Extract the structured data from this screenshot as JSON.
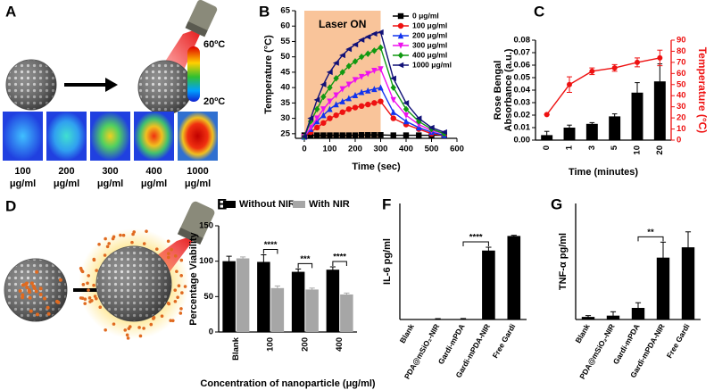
{
  "panels": [
    "A",
    "B",
    "C",
    "D",
    "E",
    "F",
    "G"
  ],
  "panel_a": {
    "scale_max": "60ºC",
    "scale_min": "20ºC",
    "labels": [
      [
        "100",
        "μg/ml"
      ],
      [
        "200",
        "μg/ml"
      ],
      [
        "300",
        "μg/ml"
      ],
      [
        "400",
        "μg/ml"
      ],
      [
        "1000",
        "μg/ml"
      ]
    ]
  },
  "chart_data": [
    {
      "type": "line",
      "annotation": "Laser ON",
      "shade_x": [
        0,
        300
      ],
      "xlabel": "Time (sec)",
      "ylabel": "Temperature (°C)",
      "xlim": [
        -35,
        600
      ],
      "xticks": [
        0,
        100,
        200,
        300,
        400,
        500,
        600
      ],
      "ylim": [
        23.5,
        65
      ],
      "yticks": [
        25,
        30,
        35,
        40,
        45,
        50,
        55,
        60,
        65
      ],
      "legend": "upper right",
      "x": [
        0,
        25,
        50,
        75,
        100,
        125,
        150,
        175,
        200,
        225,
        250,
        275,
        300,
        350,
        400,
        450,
        500,
        550
      ],
      "series": [
        {
          "name": "0 μg/ml",
          "color": "#000000",
          "marker": "square",
          "values": [
            24.5,
            24.5,
            24.5,
            24.5,
            24.5,
            24.5,
            24.5,
            24.5,
            24.5,
            24.6,
            24.6,
            24.6,
            24.6,
            24.5,
            24.5,
            24.5,
            24.5,
            24.5
          ]
        },
        {
          "name": "100 μg/ml",
          "color": "#ee1111",
          "marker": "circle",
          "values": [
            24,
            25.5,
            27,
            28.5,
            30,
            31,
            32,
            33,
            33.5,
            34,
            34.5,
            35,
            35.5,
            30,
            28,
            26.5,
            25,
            24.5
          ]
        },
        {
          "name": "200 μg/ml",
          "color": "#1133ee",
          "marker": "triangle-up",
          "values": [
            24,
            26.5,
            29,
            31,
            33,
            34.5,
            35.5,
            36.5,
            37.5,
            38.5,
            39,
            39.5,
            40,
            32,
            29,
            27,
            25.5,
            24.5
          ]
        },
        {
          "name": "300 μg/ml",
          "color": "#ee11ee",
          "marker": "triangle-down",
          "values": [
            24,
            27,
            30,
            33,
            35.5,
            37.5,
            39.5,
            41,
            42.5,
            43.5,
            44.5,
            45.5,
            46,
            36,
            31,
            28,
            26,
            25
          ]
        },
        {
          "name": "400 μg/ml",
          "color": "#119911",
          "marker": "diamond",
          "values": [
            24,
            29,
            33,
            37,
            40,
            43,
            45,
            47,
            48.5,
            50,
            51,
            52,
            53,
            40,
            33,
            29,
            26.5,
            25
          ]
        },
        {
          "name": "1000 μg/ml",
          "color": "#111177",
          "marker": "triangle-left",
          "values": [
            24,
            30,
            36,
            41,
            45,
            48,
            50.5,
            52.5,
            54,
            55.5,
            56.5,
            57.5,
            58,
            43,
            35,
            30,
            27,
            25.5
          ]
        }
      ]
    },
    {
      "type": "bar",
      "xlabel": "Time (minutes)",
      "ylabel": [
        "Rose  Bengal",
        "Absorbance (a.u.)"
      ],
      "y2label": "Temperature (°C)",
      "categories": [
        "0",
        "1",
        "3",
        "5",
        "10",
        "20"
      ],
      "ylim": [
        0,
        0.08
      ],
      "yticks": [
        {
          "value": 0,
          "label": "0.00"
        },
        {
          "value": 0.01,
          "label": "0.01"
        },
        {
          "value": 0.02,
          "label": "0.02"
        },
        {
          "value": 0.03,
          "label": "0.03"
        },
        {
          "value": 0.04,
          "label": "0.04"
        },
        {
          "value": 0.05,
          "label": "0.05"
        },
        {
          "value": 0.06,
          "label": "0.06"
        },
        {
          "value": 0.07,
          "label": "0.07"
        },
        {
          "value": 0.08,
          "label": "0.08"
        }
      ],
      "y2lim": [
        0,
        90
      ],
      "y2ticks": [
        0,
        10,
        20,
        30,
        40,
        50,
        60,
        70,
        80,
        90
      ],
      "series": [
        {
          "color": "#000000",
          "values": [
            0.004,
            0.01,
            0.013,
            0.019,
            0.038,
            0.047
          ],
          "errors": [
            0.003,
            0.002,
            0.001,
            0.002,
            0.008,
            0.014
          ]
        },
        {
          "color": "#ee1111",
          "kind": "line",
          "axis": "y2",
          "values": [
            23,
            50,
            62,
            65,
            70,
            74
          ],
          "errors": [
            0,
            7,
            3,
            3,
            4,
            7
          ]
        }
      ]
    },
    {
      "type": "bar",
      "xlabel": "Concentration of nanoparticle  (μg/ml)",
      "ylabel": "Percentage  Viability",
      "categories": [
        "Blank",
        "100",
        "200",
        "400"
      ],
      "ylim": [
        0,
        150
      ],
      "yticks": [
        0,
        50,
        100,
        150
      ],
      "series": [
        {
          "name": "Without NIR",
          "color": "#000000",
          "values": [
            100,
            99,
            85,
            88
          ],
          "errors": [
            7,
            10,
            4,
            4
          ]
        },
        {
          "name": "With NIR",
          "color": "#a6a6a6",
          "values": [
            104,
            62,
            60,
            53
          ],
          "errors": [
            2,
            3,
            2,
            2
          ]
        }
      ],
      "annotations": [
        {
          "text": "****",
          "categories": [
            1
          ]
        },
        {
          "text": "***",
          "categories": [
            2
          ]
        },
        {
          "text": "****",
          "categories": [
            3
          ]
        }
      ]
    },
    {
      "type": "bar",
      "ylabel": "IL-6 pg/ml",
      "categories": [
        "Blank",
        "PDA@mSiO₂-NIR",
        "Gardi-mPDA",
        "Gardi-mPDA-NIR",
        "Free Gardi"
      ],
      "ylim": [
        0,
        1750
      ],
      "color": "#000000",
      "values": [
        0,
        3,
        5,
        1040,
        1260
      ],
      "errors": [
        0,
        10,
        10,
        50,
        10
      ],
      "annotations": [
        {
          "text": "****",
          "categories": [
            2,
            3
          ]
        }
      ]
    },
    {
      "type": "bar",
      "ylabel": "TNF-α pg/ml",
      "categories": [
        "Blank",
        "PDA@mSiO₂-NIR",
        "Gardi-mPDA",
        "Gardi-mPDA-NIR",
        "Free Gardi"
      ],
      "ylim": [
        0,
        90
      ],
      "color": "#000000",
      "values": [
        2,
        3,
        9,
        48,
        56
      ],
      "errors": [
        1,
        3,
        4,
        12,
        12
      ],
      "annotations": [
        {
          "text": "**",
          "categories": [
            2,
            3
          ]
        }
      ]
    }
  ]
}
